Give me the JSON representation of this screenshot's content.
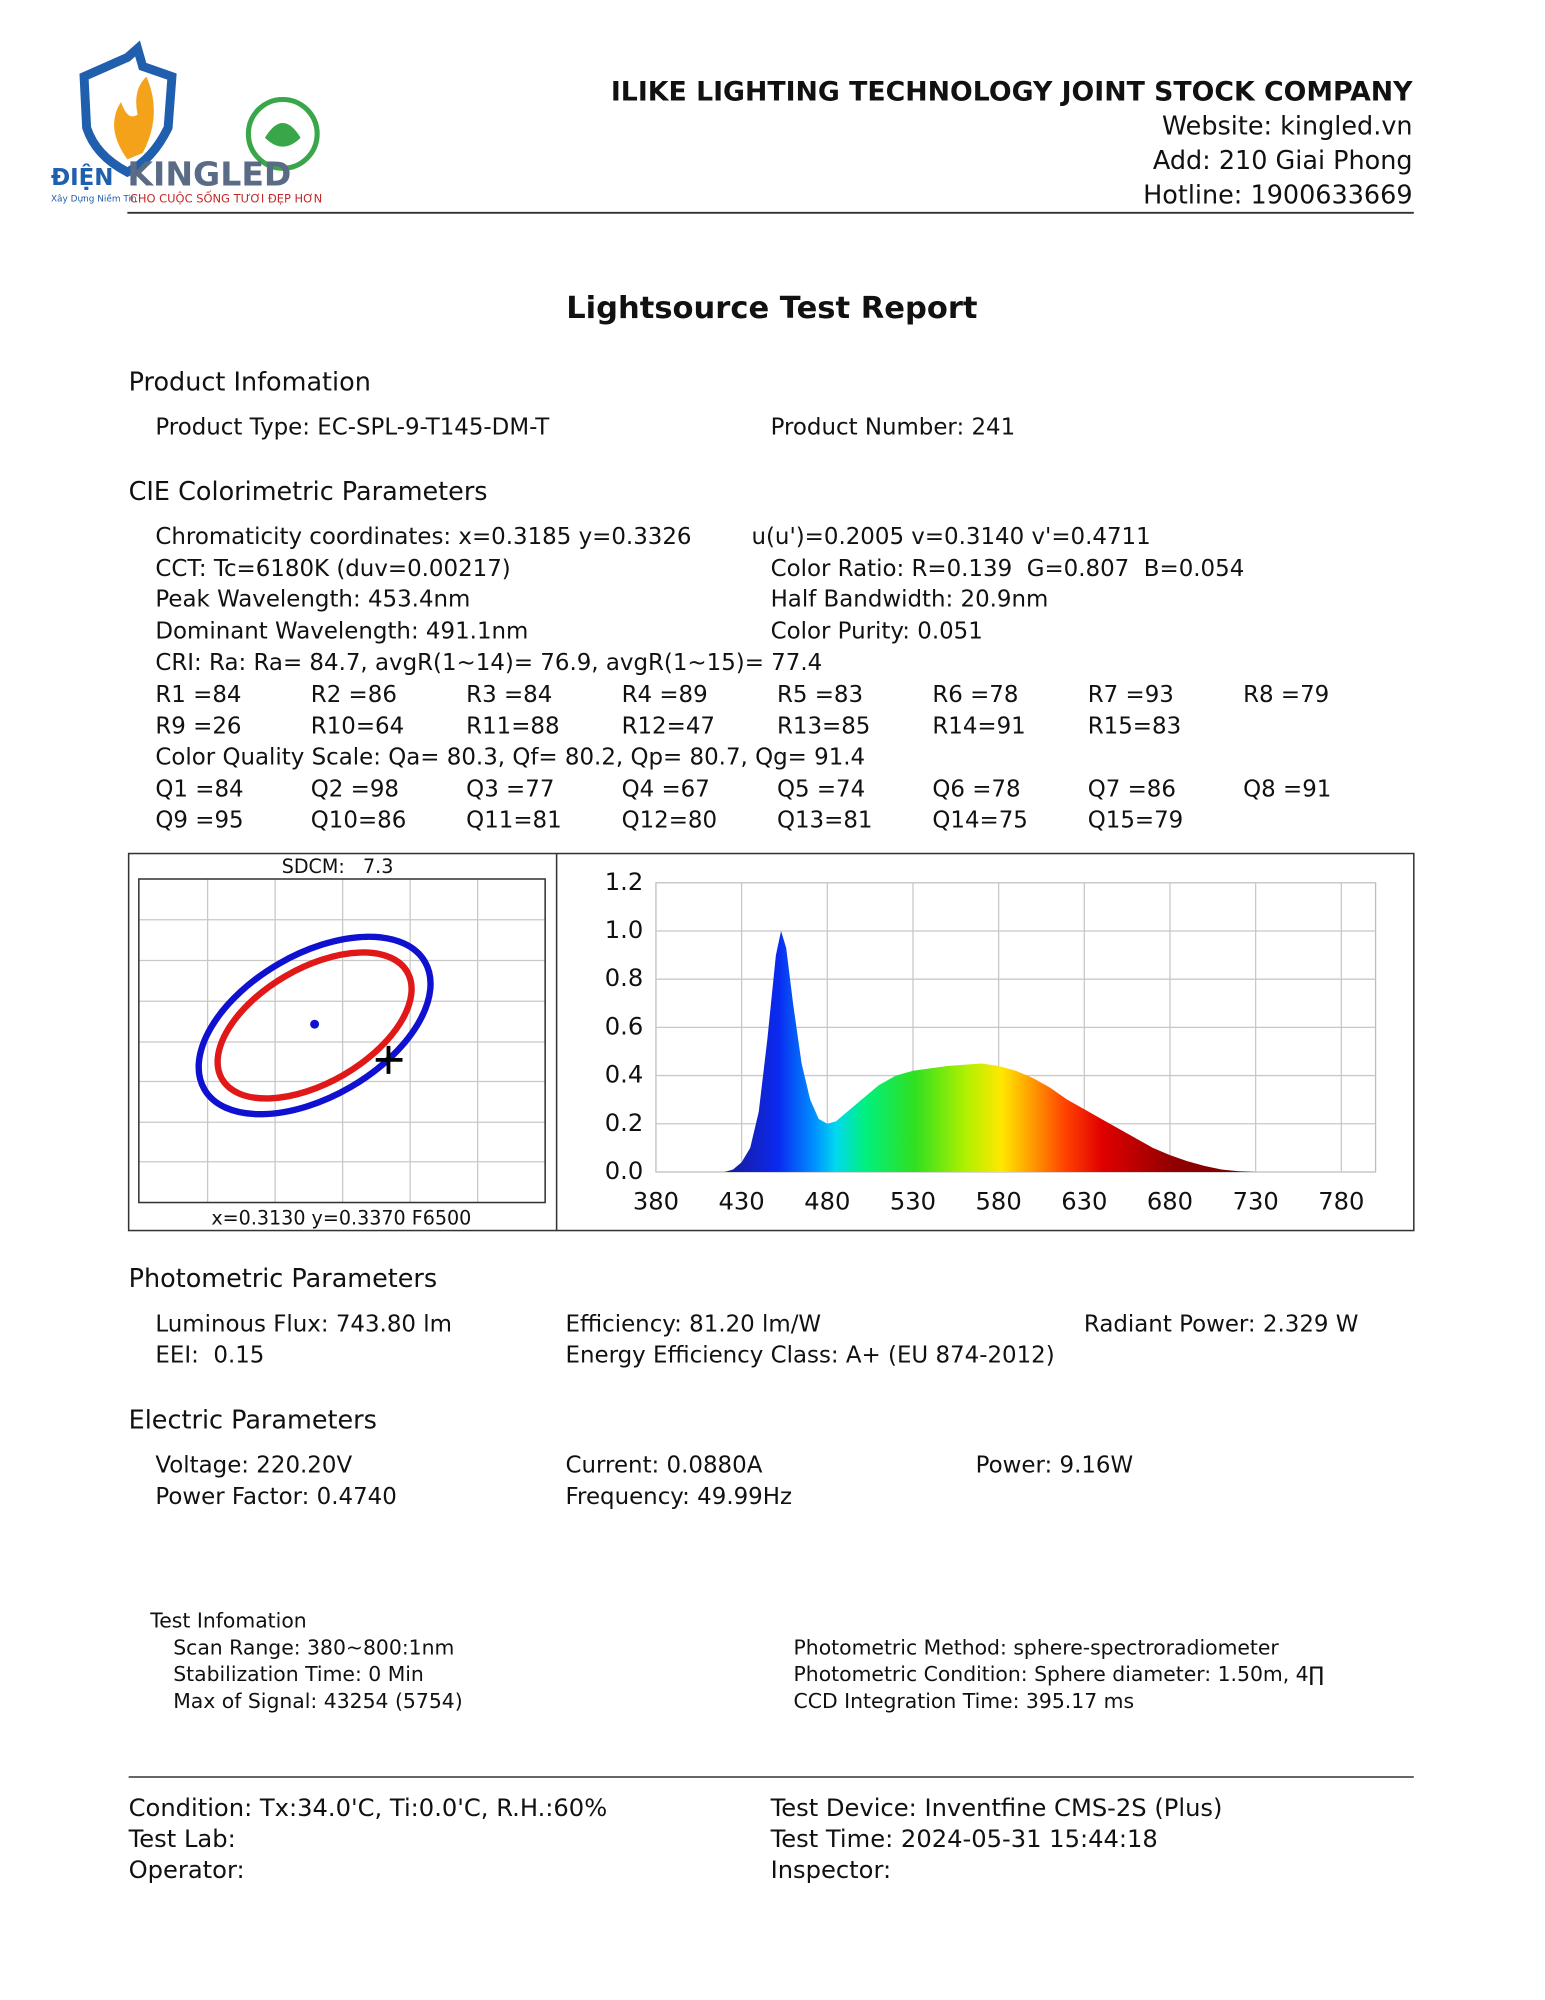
{
  "header": {
    "logo": {
      "brand_left": "ĐIỆN",
      "brand": "KINGLED",
      "tagline_small": "Xây Dựng Niềm Tin",
      "tagline": "CHO CUỘC SỐNG TƯƠI ĐẸP HƠN"
    },
    "company": "ILIKE LIGHTING TECHNOLOGY JOINT STOCK COMPANY",
    "website": "Website: kingled.vn",
    "address": "Add: 210 Giai Phong",
    "hotline": "Hotline: 1900633669"
  },
  "title": "Lightsource Test Report",
  "product": {
    "heading": "Product Infomation",
    "type": "Product Type: EC-SPL-9-T145-DM-T",
    "number": "Product Number: 241"
  },
  "cie": {
    "heading": "CIE Colorimetric Parameters",
    "lines": [
      [
        "Chromaticity coordinates: x=0.3185 y=0.3326",
        "u(u')=0.2005 v=0.3140 v'=0.4711"
      ],
      [
        "CCT: Tc=6180K (duv=0.00217)",
        "Color Ratio: R=0.139  G=0.807  B=0.054"
      ],
      [
        "Peak Wavelength: 453.4nm",
        "Half Bandwidth: 20.9nm"
      ],
      [
        "Dominant Wavelength: 491.1nm",
        "Color Purity: 0.051"
      ]
    ],
    "cri": "CRI: Ra: Ra= 84.7, avgR(1~14)= 76.9, avgR(1~15)= 77.4",
    "r_values": [
      [
        "R1 =84",
        "R2 =86",
        "R3 =84",
        "R4 =89",
        "R5 =83",
        "R6 =78",
        "R7 =93",
        "R8 =79"
      ],
      [
        "R9 =26",
        "R10=64",
        "R11=88",
        "R12=47",
        "R13=85",
        "R14=91",
        "R15=83"
      ]
    ],
    "cqs": "Color Quality Scale: Qa= 80.3, Qf= 80.2, Qp= 80.7, Qg= 91.4",
    "q_values": [
      [
        "Q1 =84",
        "Q2 =98",
        "Q3 =77",
        "Q4 =67",
        "Q5 =74",
        "Q6 =78",
        "Q7 =86",
        "Q8 =91"
      ],
      [
        "Q9 =95",
        "Q10=86",
        "Q11=81",
        "Q12=80",
        "Q13=81",
        "Q14=75",
        "Q15=79"
      ]
    ]
  },
  "sdcm": {
    "title": "SDCM:   7.3",
    "reference": "x=0.3130 y=0.3370 F6500"
  },
  "chart_data": {
    "type": "area",
    "x": [
      380,
      400,
      420,
      425,
      430,
      435,
      440,
      445,
      450,
      453,
      456,
      460,
      465,
      470,
      475,
      480,
      485,
      490,
      500,
      510,
      520,
      530,
      540,
      550,
      560,
      570,
      580,
      590,
      600,
      610,
      620,
      630,
      640,
      650,
      660,
      670,
      680,
      690,
      700,
      710,
      720,
      730,
      780,
      800
    ],
    "values": [
      0,
      0,
      0,
      0.01,
      0.04,
      0.1,
      0.25,
      0.55,
      0.9,
      1.0,
      0.93,
      0.7,
      0.45,
      0.3,
      0.22,
      0.2,
      0.21,
      0.24,
      0.3,
      0.36,
      0.4,
      0.42,
      0.43,
      0.44,
      0.445,
      0.45,
      0.44,
      0.42,
      0.39,
      0.35,
      0.3,
      0.26,
      0.22,
      0.18,
      0.14,
      0.1,
      0.07,
      0.045,
      0.025,
      0.01,
      0.003,
      0,
      0,
      0
    ],
    "xlim": [
      380,
      800
    ],
    "ylim": [
      0,
      1.2
    ],
    "xticks": [
      380,
      430,
      480,
      530,
      580,
      630,
      680,
      730,
      780
    ],
    "yticks": [
      {
        "value": 0,
        "label": "0.0"
      },
      0.2,
      0.4,
      0.6,
      0.8,
      {
        "value": 1,
        "label": "1.0"
      },
      1.2
    ],
    "grid": true
  },
  "photometric": {
    "heading": "Photometric Parameters",
    "rows": [
      [
        "Luminous Flux: 743.80 lm",
        "Efficiency: 81.20 lm/W",
        "Radiant Power: 2.329 W"
      ],
      [
        "EEI:  0.15",
        "Energy Efficiency Class: A+ (EU 874-2012)"
      ]
    ]
  },
  "electric": {
    "heading": "Electric Parameters",
    "rows": [
      [
        "Voltage: 220.20V",
        "Current: 0.0880A",
        "Power: 9.16W"
      ],
      [
        "Power Factor: 0.4740",
        "Frequency: 49.99Hz"
      ]
    ]
  },
  "test": {
    "heading": "Test Infomation",
    "left": [
      "Scan Range: 380~800:1nm",
      "Stabilization Time: 0 Min",
      "Max of Signal: 43254 (5754)"
    ],
    "right": [
      "Photometric Method: sphere-spectroradiometer",
      "Photometric Condition: Sphere diameter: 1.50m, 4∏",
      "CCD Integration Time: 395.17 ms"
    ]
  },
  "footer": [
    [
      "Condition: Tx:34.0'C, Ti:0.0'C, R.H.:60%",
      "Test Device: Inventfine CMS-2S (Plus)"
    ],
    [
      "Test Lab:",
      "Test Time: 2024-05-31 15:44:18"
    ],
    [
      "Operator:",
      "Inspector:"
    ]
  ]
}
